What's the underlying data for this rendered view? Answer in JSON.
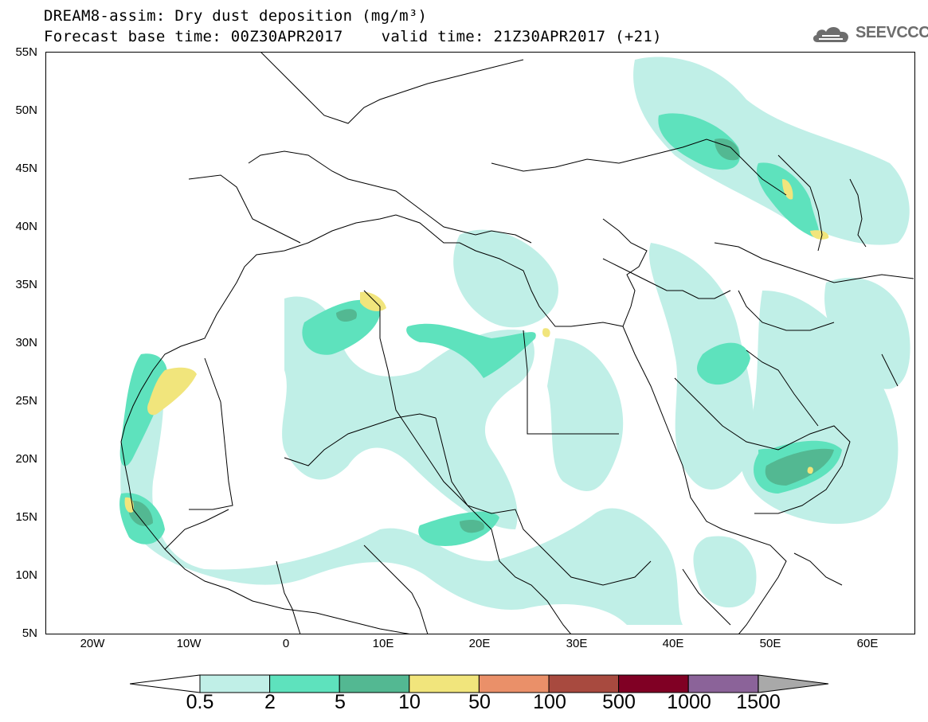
{
  "title": {
    "line1": "DREAM8-assim: Dry dust deposition (mg/m³)",
    "base_time": "Forecast base time: 00Z30APR2017",
    "valid_time": "valid time: 21Z30APR2017 (+21)"
  },
  "logo": {
    "text": "SEEVCCC",
    "icon": "cloud-icon"
  },
  "map": {
    "lat_labels": [
      "55N",
      "50N",
      "45N",
      "40N",
      "35N",
      "30N",
      "25N",
      "20N",
      "15N",
      "10N",
      "5N"
    ],
    "lon_labels": [
      "20W",
      "10W",
      "0",
      "10E",
      "20E",
      "30E",
      "40E",
      "50E",
      "60E"
    ]
  },
  "colorbar": {
    "labels": [
      "0.5",
      "2",
      "5",
      "10",
      "50",
      "100",
      "500",
      "1000",
      "1500"
    ],
    "colors": [
      "#c0efe7",
      "#5ee2bd",
      "#53b892",
      "#f1e57c",
      "#ea9069",
      "#a84a3f",
      "#800024",
      "#8b6399",
      "#a9a9a9"
    ]
  }
}
